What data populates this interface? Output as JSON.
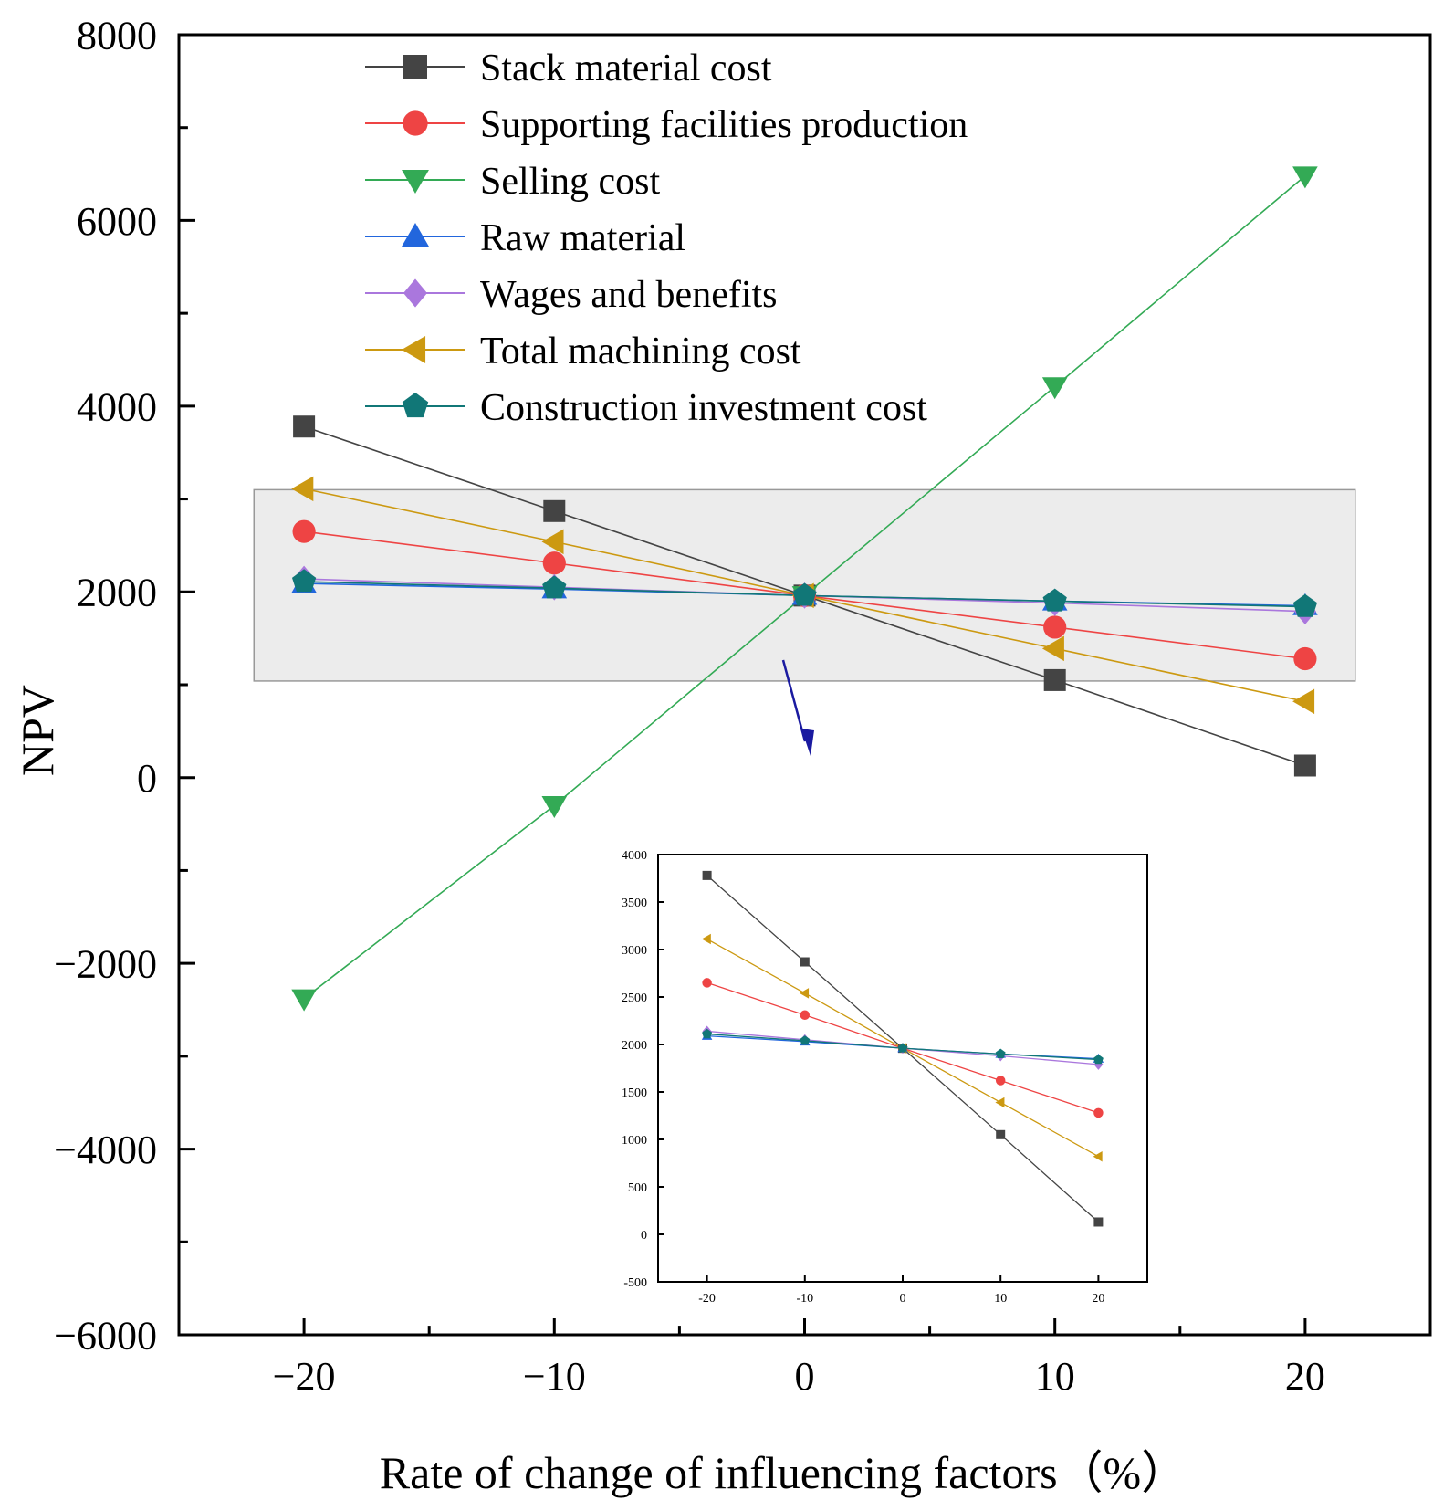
{
  "chart_data": [
    {
      "id": "main",
      "type": "line",
      "xlabel": "Rate of change of influencing factors（%）",
      "ylabel": "NPV",
      "xlim": [
        -25,
        25
      ],
      "ylim": [
        -6000,
        8000
      ],
      "xticks": [
        -20,
        -10,
        0,
        10,
        20
      ],
      "xtick_labels": [
        "−20",
        "−10",
        "0",
        "10",
        "20"
      ],
      "yticks": [
        -6000,
        -4000,
        -2000,
        0,
        2000,
        4000,
        6000,
        8000
      ],
      "ytick_labels": [
        "−6000",
        "−4000",
        "−2000",
        "0",
        "2000",
        "4000",
        "6000",
        "8000"
      ],
      "legend_position": "top-left",
      "x": [
        -20,
        -10,
        0,
        10,
        20
      ],
      "series": [
        {
          "name": "Stack material cost",
          "color": "#444444",
          "marker": "square",
          "values": [
            3780,
            2870,
            1960,
            1050,
            130
          ]
        },
        {
          "name": "Supporting facilities production",
          "color": "#ee4444",
          "marker": "circle",
          "values": [
            2650,
            2310,
            1960,
            1620,
            1280
          ]
        },
        {
          "name": "Selling cost",
          "color": "#33aa55",
          "marker": "triangle-down",
          "values": [
            -2380,
            -300,
            1960,
            4210,
            6480
          ]
        },
        {
          "name": "Raw material",
          "color": "#2266dd",
          "marker": "triangle-up",
          "values": [
            2090,
            2030,
            1960,
            1900,
            1850
          ]
        },
        {
          "name": "Wages and benefits",
          "color": "#aa77dd",
          "marker": "diamond",
          "values": [
            2140,
            2050,
            1960,
            1880,
            1790
          ]
        },
        {
          "name": "Total machining cost",
          "color": "#cc9911",
          "marker": "triangle-left",
          "values": [
            3110,
            2540,
            1960,
            1390,
            820
          ]
        },
        {
          "name": "Construction investment cost",
          "color": "#117777",
          "marker": "pentagon",
          "values": [
            2110,
            2040,
            1960,
            1900,
            1840
          ]
        }
      ],
      "highlight_region": {
        "x_range": [
          -22,
          22
        ],
        "y_range": [
          1040,
          3100
        ]
      }
    },
    {
      "id": "inset",
      "type": "line",
      "xlim": [
        -25,
        25
      ],
      "ylim": [
        -500,
        4000
      ],
      "xticks": [
        -20,
        -10,
        0,
        10,
        20
      ],
      "xtick_labels": [
        "-20",
        "-10",
        "0",
        "10",
        "20"
      ],
      "yticks": [
        -500,
        0,
        500,
        1000,
        1500,
        2000,
        2500,
        3000,
        3500,
        4000
      ],
      "ytick_labels": [
        "-500",
        "0",
        "500",
        "1000",
        "1500",
        "2000",
        "2500",
        "3000",
        "3500",
        "4000"
      ],
      "x": [
        -20,
        -10,
        0,
        10,
        20
      ],
      "series": [
        {
          "name": "Stack material cost",
          "color": "#444444",
          "marker": "square",
          "values": [
            3780,
            2870,
            1960,
            1050,
            130
          ]
        },
        {
          "name": "Supporting facilities production",
          "color": "#ee4444",
          "marker": "circle",
          "values": [
            2650,
            2310,
            1960,
            1620,
            1280
          ]
        },
        {
          "name": "Raw material",
          "color": "#2266dd",
          "marker": "triangle-up",
          "values": [
            2090,
            2030,
            1960,
            1900,
            1850
          ]
        },
        {
          "name": "Wages and benefits",
          "color": "#aa77dd",
          "marker": "diamond",
          "values": [
            2140,
            2050,
            1960,
            1880,
            1790
          ]
        },
        {
          "name": "Total machining cost",
          "color": "#cc9911",
          "marker": "triangle-left",
          "values": [
            3110,
            2540,
            1960,
            1390,
            820
          ]
        },
        {
          "name": "Construction investment cost",
          "color": "#117777",
          "marker": "pentagon",
          "values": [
            2110,
            2040,
            1960,
            1900,
            1840
          ]
        }
      ]
    }
  ]
}
